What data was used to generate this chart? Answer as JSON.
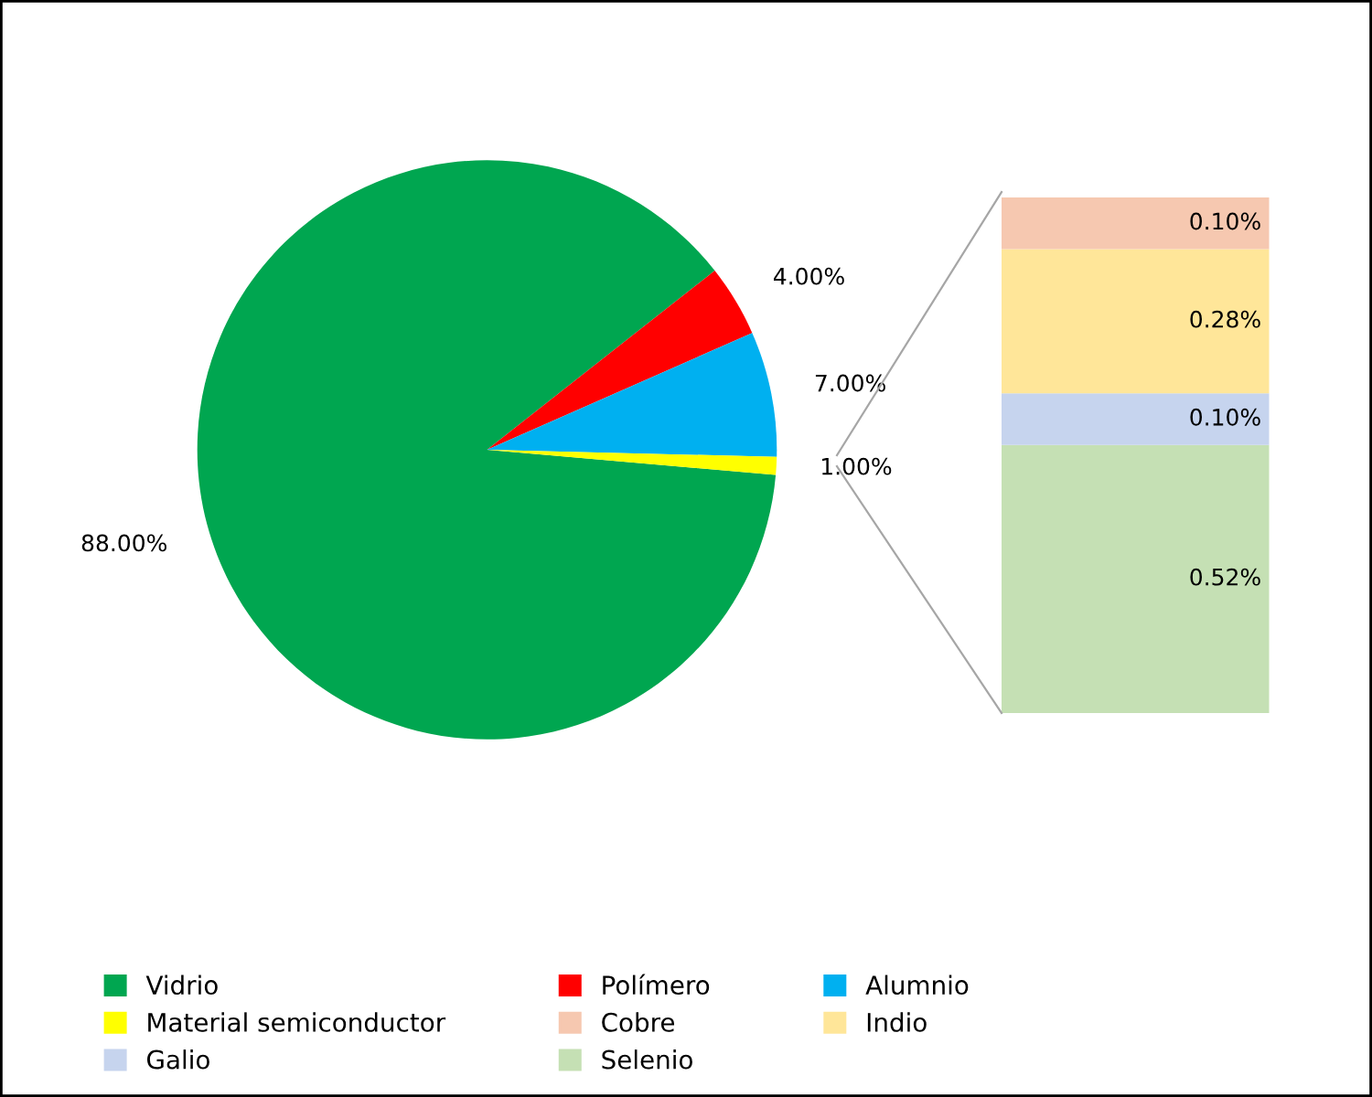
{
  "chart_data": [
    {
      "type": "pie",
      "categories": [
        "Vidrio",
        "Polímero",
        "Alumnio",
        "Material semiconductor"
      ],
      "values": [
        88,
        4,
        7,
        1
      ],
      "colors": [
        "#00a650",
        "#ff0000",
        "#00b0f0",
        "#ffff00"
      ],
      "value_labels": [
        "88.00%",
        "4.00%",
        "7.00%",
        "1.00%"
      ],
      "legend": "bottom"
    },
    {
      "type": "bar",
      "stacked": true,
      "categories": [
        null
      ],
      "series": [
        {
          "name": "Selenio",
          "color": "#c5e0b4",
          "values": [
            0.52
          ],
          "value_labels": [
            "0.52%"
          ]
        },
        {
          "name": "Galio",
          "color": "#c6d4ee",
          "values": [
            0.1
          ],
          "value_labels": [
            "0.10%"
          ]
        },
        {
          "name": "Indio",
          "color": "#ffe699",
          "values": [
            0.28
          ],
          "value_labels": [
            "0.28%"
          ]
        },
        {
          "name": "Cobre",
          "color": "#f6c8b0",
          "values": [
            0.1
          ],
          "value_labels": [
            "0.10%"
          ]
        }
      ],
      "legend": "bottom left"
    }
  ]
}
